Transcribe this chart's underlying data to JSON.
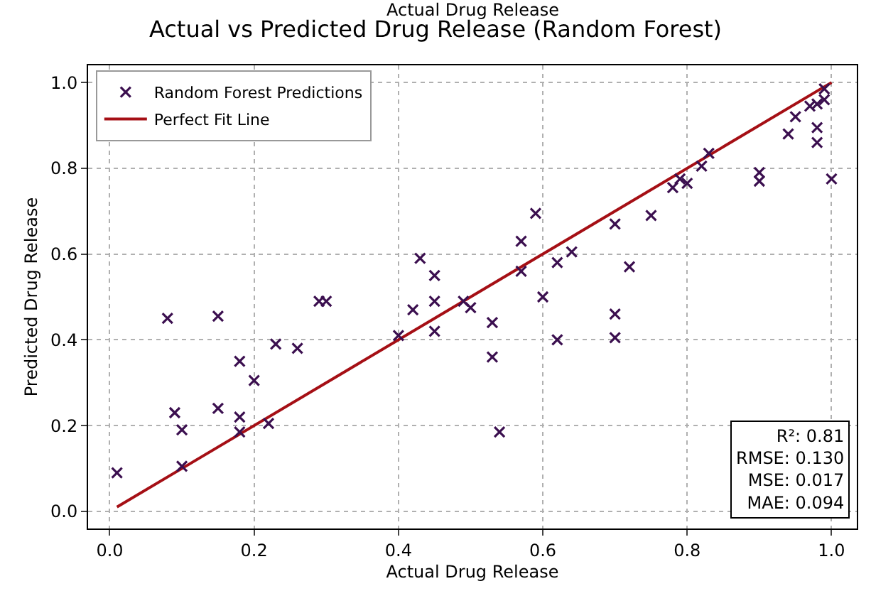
{
  "chart_data": {
    "type": "scatter",
    "title": "Actual vs Predicted Drug Release (Random Forest)",
    "xlabel": "Actual Drug Release",
    "ylabel": "Predicted Drug Release",
    "xlim": [
      -0.03,
      1.035
    ],
    "ylim": [
      -0.04,
      1.04
    ],
    "xticks": [
      {
        "value": 0,
        "label": "0.0"
      },
      0.2,
      0.4,
      0.6,
      0.8,
      {
        "value": 1,
        "label": "1.0"
      }
    ],
    "yticks": [
      {
        "value": 0,
        "label": "0.0"
      },
      0.2,
      0.4,
      0.6,
      0.8,
      {
        "value": 1,
        "label": "1.0"
      }
    ],
    "grid": true,
    "legend": "top left",
    "marker": "cross",
    "series": [
      {
        "name": "Random Forest Predictions",
        "color": "#3b0f4f",
        "x": [
          0.01,
          0.08,
          0.09,
          0.1,
          0.1,
          0.15,
          0.15,
          0.18,
          0.18,
          0.18,
          0.2,
          0.22,
          0.23,
          0.26,
          0.29,
          0.3,
          0.4,
          0.42,
          0.43,
          0.45,
          0.45,
          0.45,
          0.49,
          0.5,
          0.53,
          0.53,
          0.54,
          0.57,
          0.57,
          0.59,
          0.6,
          0.62,
          0.62,
          0.64,
          0.7,
          0.7,
          0.7,
          0.72,
          0.75,
          0.78,
          0.79,
          0.8,
          0.82,
          0.83,
          0.9,
          0.9,
          0.94,
          0.95,
          0.97,
          0.98,
          0.98,
          0.98,
          0.99,
          0.99,
          1.0
        ],
        "values": [
          0.09,
          0.45,
          0.23,
          0.19,
          0.105,
          0.455,
          0.24,
          0.35,
          0.22,
          0.185,
          0.305,
          0.205,
          0.39,
          0.38,
          0.49,
          0.49,
          0.41,
          0.47,
          0.59,
          0.55,
          0.49,
          0.42,
          0.49,
          0.475,
          0.44,
          0.36,
          0.185,
          0.63,
          0.56,
          0.695,
          0.5,
          0.58,
          0.4,
          0.605,
          0.67,
          0.46,
          0.405,
          0.57,
          0.69,
          0.755,
          0.775,
          0.765,
          0.805,
          0.835,
          0.79,
          0.77,
          0.88,
          0.92,
          0.945,
          0.95,
          0.895,
          0.86,
          0.985,
          0.96,
          0.775
        ]
      },
      {
        "name": "Perfect Fit Line",
        "type": "line",
        "color": "#a50f15",
        "marker": "none",
        "line_style": "solid",
        "x": [
          0.01,
          1.0
        ],
        "values": [
          0.01,
          1.0
        ]
      }
    ],
    "annotations": [
      "Actual Drug Release",
      "R²: 0.81\nRMSE: 0.130\nMSE: 0.017\nMAE: 0.094"
    ]
  }
}
